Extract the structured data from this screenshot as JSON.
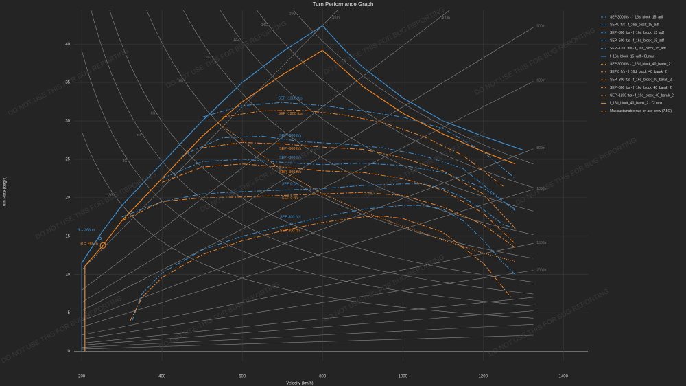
{
  "chart_data": {
    "type": "line",
    "title": "Turn Performance Graph",
    "x_label": "Velocity (km/h)",
    "y_label": "Turn Rate (deg/s)",
    "watermark": "DO NOT USE THIS FOR BUG REPORTING",
    "xlim": [
      181,
      1461
    ],
    "ylim": [
      -1.2,
      44.4
    ],
    "xticks": [
      200,
      400,
      600,
      800,
      1000,
      1200,
      1400
    ],
    "yticks": [
      0,
      5,
      10,
      15,
      20,
      25,
      30,
      35,
      40
    ],
    "grid": true,
    "legend": "outside-right",
    "reference_radius": [
      {
        "value": 300,
        "label": "300m"
      },
      {
        "value": 400,
        "label": "400m"
      },
      {
        "value": 500,
        "label": "500m"
      },
      {
        "value": 600,
        "label": "600m"
      },
      {
        "value": 800,
        "label": "800m"
      },
      {
        "value": 1000,
        "label": "1000m"
      },
      {
        "value": 1500,
        "label": "1500m"
      },
      {
        "value": 2000,
        "label": "2000m"
      },
      3000,
      4000,
      6000,
      10000
    ],
    "reference_g": [
      {
        "value": 3,
        "label": "3G"
      },
      {
        "value": 4,
        "label": "4G"
      },
      {
        "value": 5,
        "label": "5G"
      },
      {
        "value": 6,
        "label": "6G"
      },
      {
        "value": 8,
        "label": "8G"
      },
      {
        "value": 10,
        "label": "10G"
      },
      {
        "value": 12,
        "label": "12G"
      },
      {
        "value": 14,
        "label": "14G"
      },
      {
        "value": 16,
        "label": "16G"
      }
    ],
    "series": [
      {
        "name": "SEP 300 ft/s - f_16a_block_15_adf",
        "color": "#3b8fd1",
        "dash": "dashdot",
        "curve_label": "SEP 300 ft/s",
        "x": [
          325,
          350,
          400,
          500,
          600,
          700,
          800,
          900,
          1000,
          1050,
          1100,
          1150,
          1200,
          1250,
          1280
        ],
        "values": [
          3.9,
          7.5,
          10.2,
          13.2,
          15.0,
          16.3,
          17.5,
          18.5,
          19.0,
          19.0,
          18.5,
          17.0,
          14.5,
          11.5,
          10.0
        ]
      },
      {
        "name": "SEP 0 ft/s - f_16a_block_15_adf",
        "color": "#3b8fd1",
        "dash": "dashdot",
        "curve_label": "SEP 0 ft/s",
        "x": [
          300,
          400,
          500,
          600,
          700,
          800,
          900,
          1000,
          1050,
          1100,
          1150,
          1200,
          1250,
          1280
        ],
        "values": [
          17.5,
          19.5,
          20.5,
          20.8,
          21.0,
          21.2,
          21.6,
          21.8,
          21.8,
          21.2,
          20.0,
          18.5,
          16.5,
          16.0
        ]
      },
      {
        "name": "SEP -300 ft/s - f_16a_block_15_adf",
        "color": "#3b8fd1",
        "dash": "dashdot",
        "curve_label": "SEP -300 ft/s",
        "x": [
          400,
          500,
          600,
          700,
          800,
          900,
          1000,
          1100,
          1200,
          1280
        ],
        "values": [
          22.5,
          24.7,
          25.0,
          24.6,
          24.3,
          24.5,
          24.2,
          23.3,
          21.3,
          18.5
        ]
      },
      {
        "name": "SEP -600 ft/s - f_16a_block_15_adf",
        "color": "#3b8fd1",
        "dash": "dashdot",
        "curve_label": "SEP -600 ft/s",
        "x": [
          450,
          550,
          650,
          750,
          850,
          950,
          1050,
          1150,
          1280
        ],
        "values": [
          25.5,
          27.8,
          28.0,
          27.3,
          27.0,
          26.5,
          25.5,
          23.8,
          18.3
        ]
      },
      {
        "name": "SEP -1200 ft/s - f_16a_block_15_adf",
        "color": "#3b8fd1",
        "dash": "dashdot",
        "curve_label": "SEP -1200 ft/s",
        "x": [
          500,
          600,
          700,
          800,
          900,
          1000,
          1100,
          1200,
          1280
        ],
        "values": [
          30.5,
          32.0,
          32.4,
          32.0,
          31.3,
          30.5,
          29.0,
          26.0,
          22.5
        ]
      },
      {
        "name": "f_16a_block_15_adf - CLmax",
        "color": "#3b8fd1",
        "dash": "solid",
        "x": [
          200,
          200,
          250,
          300,
          400,
          500,
          600,
          700,
          800,
          850,
          900,
          1000,
          1100,
          1200,
          1300
        ],
        "values": [
          0,
          11.5,
          15.5,
          19.0,
          24.5,
          30.0,
          35.0,
          39.0,
          42.4,
          39.5,
          37.0,
          33.0,
          30.0,
          28.0,
          26.2
        ]
      },
      {
        "name": "SEP 300 ft/s - f_16d_block_40_barak_2",
        "color": "#f0831f",
        "dash": "dashdot",
        "curve_label": "SEP 300 ft/s",
        "x": [
          321,
          350,
          400,
          500,
          600,
          700,
          800,
          900,
          950,
          1000,
          1100,
          1200,
          1270
        ],
        "values": [
          4.0,
          7.0,
          9.6,
          12.6,
          14.4,
          15.7,
          16.8,
          17.5,
          17.6,
          17.3,
          15.5,
          11.5,
          7.0
        ]
      },
      {
        "name": "SEP 0 ft/s - f_16d_block_40_barak_2",
        "color": "#f0831f",
        "dash": "dashdot",
        "curve_label": "SEP 0 ft/s",
        "x": [
          300,
          400,
          500,
          600,
          700,
          800,
          900,
          1000,
          1100,
          1200,
          1280
        ],
        "values": [
          17.0,
          19.5,
          20.0,
          20.1,
          20.3,
          20.5,
          20.7,
          20.3,
          18.8,
          16.5,
          13.5
        ]
      },
      {
        "name": "SEP -300 ft/s - f_16d_block_40_barak_2",
        "color": "#f0831f",
        "dash": "dashdot",
        "curve_label": "SEP -300 ft/s",
        "x": [
          400,
          500,
          600,
          700,
          800,
          900,
          1000,
          1100,
          1200,
          1280
        ],
        "values": [
          22.0,
          24.0,
          24.4,
          24.0,
          23.5,
          23.3,
          22.5,
          21.0,
          18.0,
          14.0
        ]
      },
      {
        "name": "SEP -600 ft/s - f_16d_block_40_barak_2",
        "color": "#f0831f",
        "dash": "dashdot",
        "curve_label": "SEP -600 ft/s",
        "x": [
          500,
          600,
          700,
          800,
          900,
          1000,
          1100,
          1200,
          1280
        ],
        "values": [
          26.5,
          27.2,
          27.0,
          26.6,
          26.3,
          25.2,
          23.5,
          20.5,
          16.0
        ]
      },
      {
        "name": "SEP -1200 ft/s - f_16d_block_40_barak_2",
        "color": "#f0831f",
        "dash": "dashdot",
        "curve_label": "SEP -1200 ft/s",
        "x": [
          550,
          650,
          750,
          850,
          950,
          1050,
          1150,
          1250
        ],
        "values": [
          30.5,
          31.3,
          31.4,
          30.8,
          29.8,
          28.0,
          25.5,
          21.5
        ]
      },
      {
        "name": "f_16d_block_40_barak_2 - CLmax",
        "color": "#f0831f",
        "dash": "solid",
        "x": [
          208,
          208,
          253,
          300,
          400,
          500,
          600,
          700,
          800,
          900,
          1000,
          1100,
          1200,
          1280
        ],
        "values": [
          0,
          11.1,
          13.8,
          17.0,
          22.5,
          28.0,
          32.5,
          36.0,
          39.2,
          34.5,
          31.0,
          28.3,
          26.0,
          24.4
        ]
      },
      {
        "name": "Max sustainable rate on ace crew (7.5G)",
        "color": "#f0831f",
        "dash": "dot",
        "x": [
          540,
          600,
          700,
          800,
          900,
          1000,
          1100,
          1200,
          1280
        ],
        "values": [
          29.7,
          27.5,
          23.5,
          20.5,
          18.2,
          16.3,
          14.5,
          12.8,
          11.7
        ]
      }
    ],
    "markers": [
      {
        "x": 245,
        "y": 14.7,
        "color": "#3b8fd1",
        "label": "R = 268 m"
      },
      {
        "x": 253,
        "y": 13.8,
        "color": "#f0831f",
        "label": "R = 285 m"
      }
    ]
  }
}
